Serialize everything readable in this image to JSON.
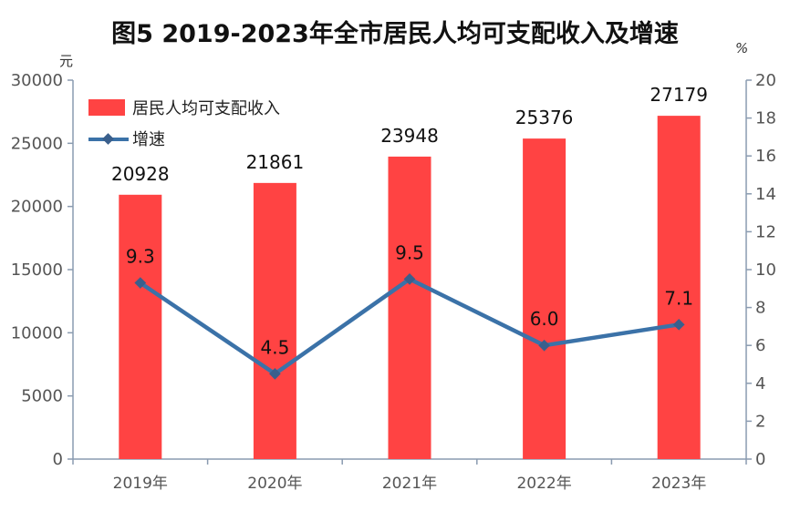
{
  "chart_data": {
    "type": "bar",
    "title": "图5 2019-2023年全市居民人均可支配收入及增速",
    "categories": [
      "2019年",
      "2020年",
      "2021年",
      "2022年",
      "2023年"
    ],
    "y_left_unit": "元",
    "y_right_unit": "%",
    "ylim_left": [
      0,
      30000
    ],
    "ylim_right": [
      0,
      20
    ],
    "yticks_left": [
      "0",
      "5000",
      "10000",
      "15000",
      "20000",
      "25000",
      "30000"
    ],
    "yticks_right": [
      "0",
      "2",
      "4",
      "6",
      "8",
      "10",
      "12",
      "14",
      "16",
      "18",
      "20"
    ],
    "grid": false,
    "legend_position": "top-left",
    "series": [
      {
        "name": "居民人均可支配收入",
        "type": "bar",
        "axis": "left",
        "values": [
          20928,
          21861,
          23948,
          25376,
          27179
        ],
        "labels": [
          "20928",
          "21861",
          "23948",
          "25376",
          "27179"
        ]
      },
      {
        "name": "增速",
        "type": "line",
        "axis": "right",
        "values": [
          9.3,
          4.5,
          9.5,
          6.0,
          7.1
        ],
        "labels": [
          "9.3",
          "4.5",
          "9.5",
          "6.0",
          "7.1"
        ]
      }
    ]
  },
  "colors": {
    "bar": "#ff4343",
    "line": "#3b72a8",
    "axis": "#8a9bb0"
  }
}
